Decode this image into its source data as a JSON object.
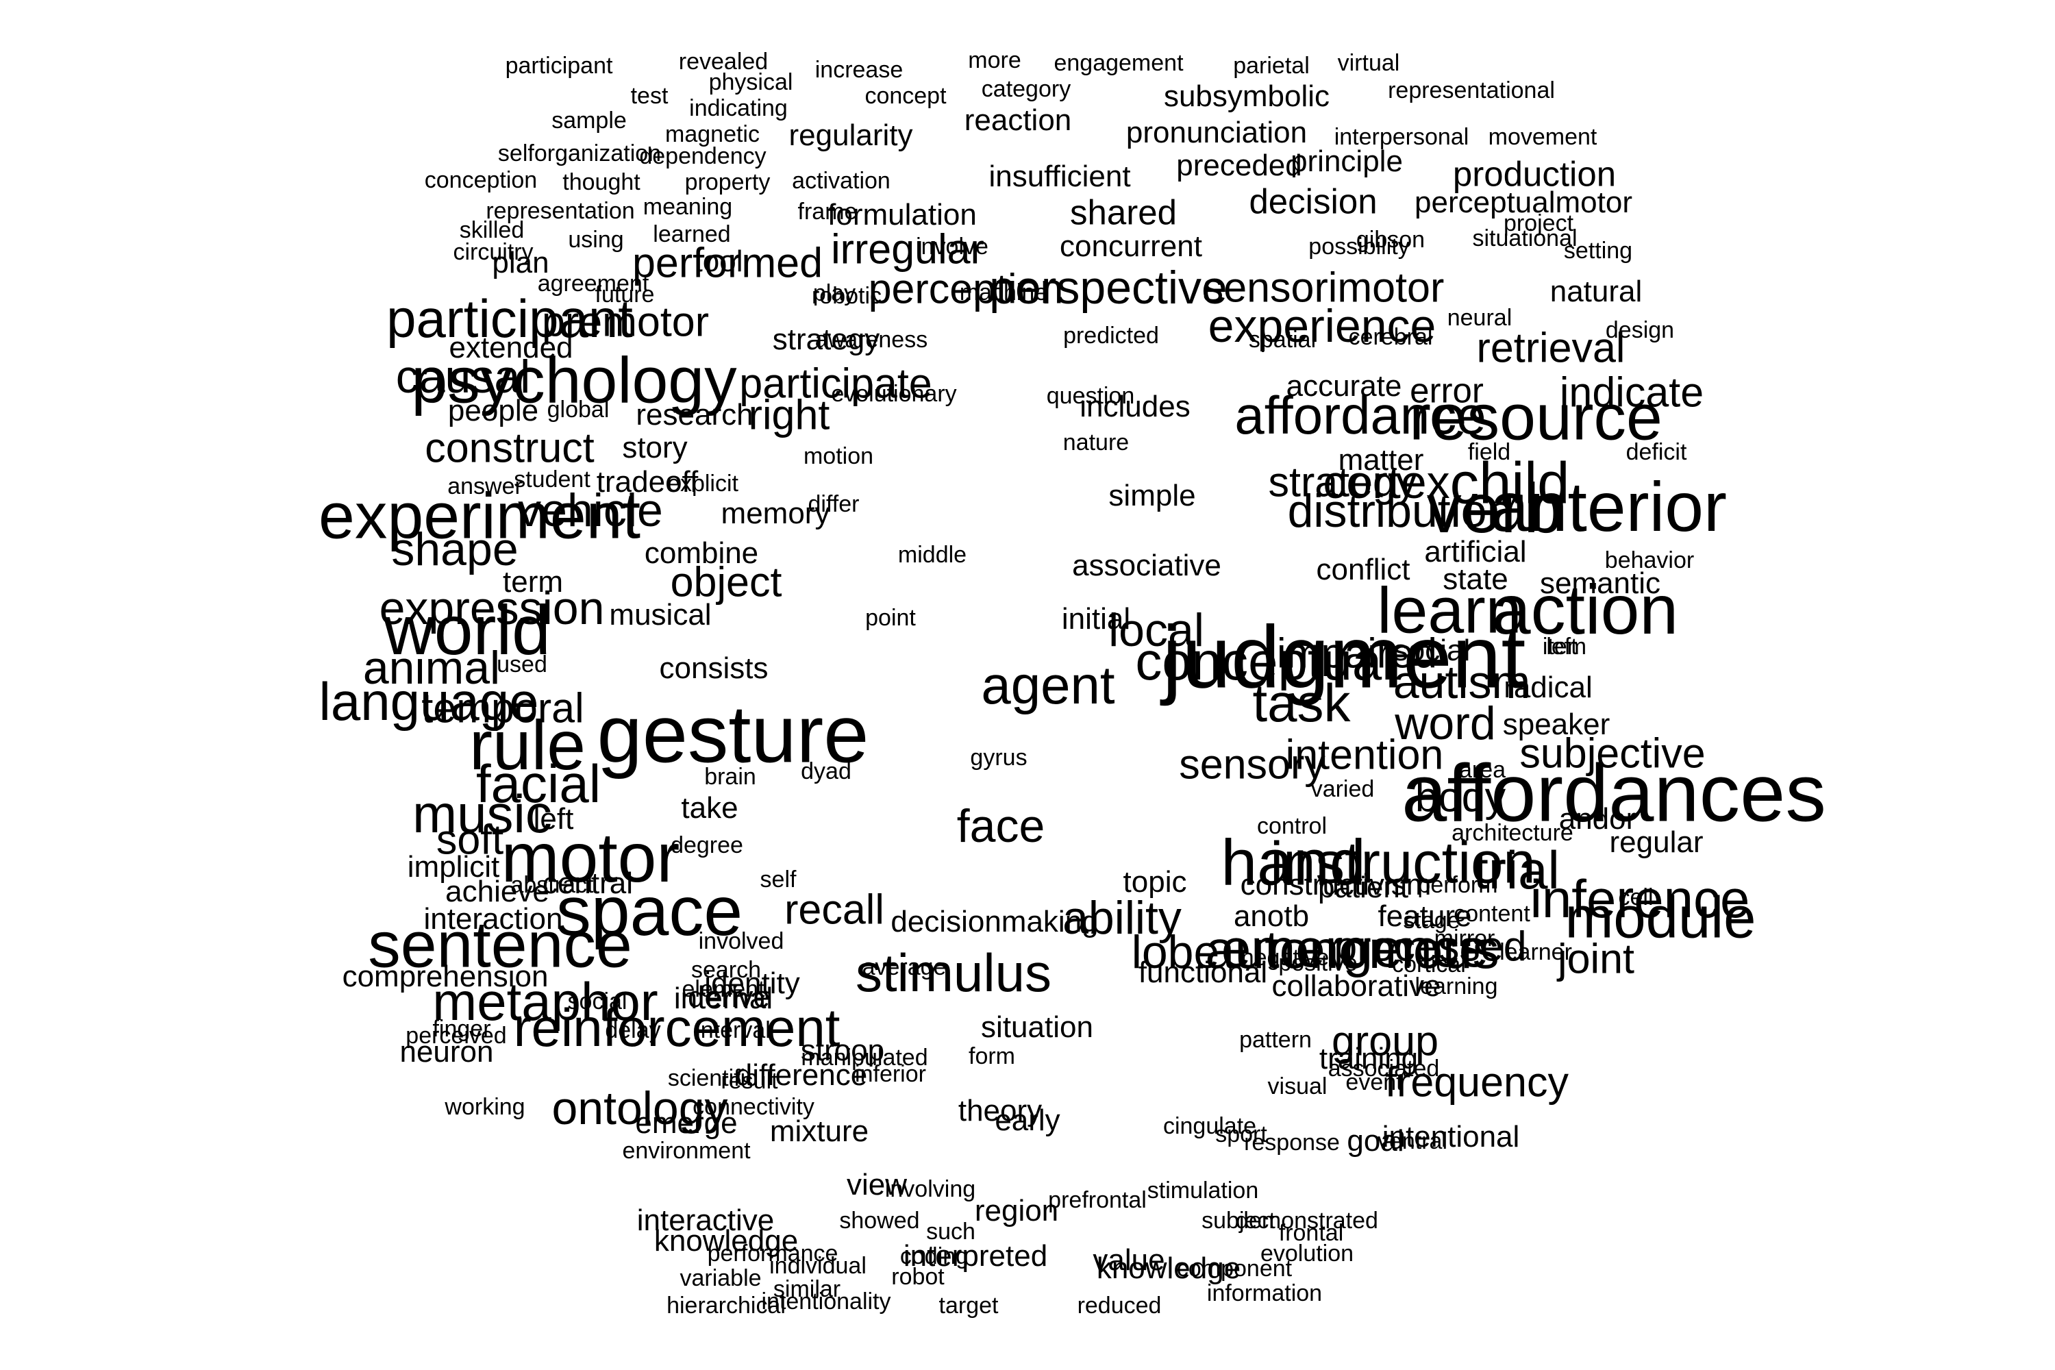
{
  "chart_data": {
    "type": "wordcloud",
    "color": "#000000",
    "background": "#ffffff",
    "words": [
      {
        "text": "participant",
        "weight": 1.0
      },
      {
        "text": "revealed",
        "weight": 1.0
      },
      {
        "text": "physical",
        "weight": 1.0
      },
      {
        "text": "increase",
        "weight": 1.0
      },
      {
        "text": "more",
        "weight": 1.0
      },
      {
        "text": "engagement",
        "weight": 1.0
      },
      {
        "text": "parietal",
        "weight": 1.0
      },
      {
        "text": "virtual",
        "weight": 1.0
      },
      {
        "text": "test",
        "weight": 1.0
      },
      {
        "text": "indicating",
        "weight": 1.0
      },
      {
        "text": "concept",
        "weight": 1.0
      },
      {
        "text": "category",
        "weight": 1.0
      },
      {
        "text": "subsymbolic",
        "weight": 1.3
      },
      {
        "text": "representational",
        "weight": 1.0
      },
      {
        "text": "sample",
        "weight": 1.0
      },
      {
        "text": "magnetic",
        "weight": 1.0
      },
      {
        "text": "regularity",
        "weight": 1.3
      },
      {
        "text": "reaction",
        "weight": 1.3
      },
      {
        "text": "pronunciation",
        "weight": 1.3
      },
      {
        "text": "interpersonal",
        "weight": 1.0
      },
      {
        "text": "movement",
        "weight": 1.0
      },
      {
        "text": "selforganization",
        "weight": 1.0
      },
      {
        "text": "dependency",
        "weight": 1.0
      },
      {
        "text": "preceded",
        "weight": 1.3
      },
      {
        "text": "principle",
        "weight": 1.3
      },
      {
        "text": "conception",
        "weight": 1.0
      },
      {
        "text": "thought",
        "weight": 1.0
      },
      {
        "text": "property",
        "weight": 1.0
      },
      {
        "text": "activation",
        "weight": 1.0
      },
      {
        "text": "insufficient",
        "weight": 1.3
      },
      {
        "text": "production",
        "weight": 1.5
      },
      {
        "text": "representation",
        "weight": 1.0
      },
      {
        "text": "meaning",
        "weight": 1.0
      },
      {
        "text": "frame",
        "weight": 1.0
      },
      {
        "text": "formulation",
        "weight": 1.3
      },
      {
        "text": "shared",
        "weight": 1.5
      },
      {
        "text": "decision",
        "weight": 1.5
      },
      {
        "text": "perceptualmotor",
        "weight": 1.3
      },
      {
        "text": "skilled",
        "weight": 1.0
      },
      {
        "text": "using",
        "weight": 1.0
      },
      {
        "text": "learned",
        "weight": 1.0
      },
      {
        "text": "tool",
        "weight": 1.3
      },
      {
        "text": "involve",
        "weight": 1.0
      },
      {
        "text": "possibility",
        "weight": 1.0
      },
      {
        "text": "project",
        "weight": 1.0
      },
      {
        "text": "circuitry",
        "weight": 1.0
      },
      {
        "text": "plan",
        "weight": 1.3
      },
      {
        "text": "performed",
        "weight": 1.8
      },
      {
        "text": "irregular",
        "weight": 1.8
      },
      {
        "text": "concurrent",
        "weight": 1.3
      },
      {
        "text": "gibson",
        "weight": 1.0
      },
      {
        "text": "situational",
        "weight": 1.0
      },
      {
        "text": "setting",
        "weight": 1.0
      },
      {
        "text": "agreement",
        "weight": 1.0
      },
      {
        "text": "future",
        "weight": 1.0
      },
      {
        "text": "play",
        "weight": 1.0
      },
      {
        "text": "perception",
        "weight": 1.8
      },
      {
        "text": "perspective",
        "weight": 2.0
      },
      {
        "text": "sensorimotor",
        "weight": 1.8
      },
      {
        "text": "neural",
        "weight": 1.0
      },
      {
        "text": "natural",
        "weight": 1.3
      },
      {
        "text": "robotic",
        "weight": 1.0
      },
      {
        "text": "machine",
        "weight": 1.0
      },
      {
        "text": "experience",
        "weight": 2.0
      },
      {
        "text": "participant",
        "weight": 2.3
      },
      {
        "text": "premotor",
        "weight": 1.8
      },
      {
        "text": "strategy",
        "weight": 1.3
      },
      {
        "text": "predicted",
        "weight": 1.0
      },
      {
        "text": "design",
        "weight": 1.0
      },
      {
        "text": "extended",
        "weight": 1.3
      },
      {
        "text": "awareness",
        "weight": 1.0
      },
      {
        "text": "spatial",
        "weight": 1.0
      },
      {
        "text": "cerebral",
        "weight": 1.0
      },
      {
        "text": "retrieval",
        "weight": 1.8
      },
      {
        "text": "causal",
        "weight": 2.0
      },
      {
        "text": "psychology",
        "weight": 2.8
      },
      {
        "text": "participate",
        "weight": 1.8
      },
      {
        "text": "evolutionary",
        "weight": 1.0
      },
      {
        "text": "question",
        "weight": 1.0
      },
      {
        "text": "includes",
        "weight": 1.3
      },
      {
        "text": "accurate",
        "weight": 1.3
      },
      {
        "text": "error",
        "weight": 1.5
      },
      {
        "text": "indicate",
        "weight": 1.8
      },
      {
        "text": "people",
        "weight": 1.3
      },
      {
        "text": "global",
        "weight": 1.0
      },
      {
        "text": "research",
        "weight": 1.3
      },
      {
        "text": "right",
        "weight": 1.8
      },
      {
        "text": "affordance",
        "weight": 2.3
      },
      {
        "text": "resource",
        "weight": 2.8
      },
      {
        "text": "construct",
        "weight": 1.8
      },
      {
        "text": "story",
        "weight": 1.3
      },
      {
        "text": "motion",
        "weight": 1.0
      },
      {
        "text": "nature",
        "weight": 1.0
      },
      {
        "text": "matter",
        "weight": 1.3
      },
      {
        "text": "field",
        "weight": 1.0
      },
      {
        "text": "deficit",
        "weight": 1.0
      },
      {
        "text": "answer",
        "weight": 1.0
      },
      {
        "text": "student",
        "weight": 1.0
      },
      {
        "text": "tradeoff",
        "weight": 1.3
      },
      {
        "text": "explicit",
        "weight": 1.0
      },
      {
        "text": "strategy",
        "weight": 1.8
      },
      {
        "text": "cortex",
        "weight": 2.0
      },
      {
        "text": "child",
        "weight": 2.5
      },
      {
        "text": "experiment",
        "weight": 2.8
      },
      {
        "text": "vehicle",
        "weight": 2.0
      },
      {
        "text": "memory",
        "weight": 1.3
      },
      {
        "text": "differ",
        "weight": 1.0
      },
      {
        "text": "simple",
        "weight": 1.3
      },
      {
        "text": "distribution",
        "weight": 2.0
      },
      {
        "text": "verb",
        "weight": 3.0
      },
      {
        "text": "anterior",
        "weight": 3.0
      },
      {
        "text": "shape",
        "weight": 2.0
      },
      {
        "text": "combine",
        "weight": 1.3
      },
      {
        "text": "middle",
        "weight": 1.0
      },
      {
        "text": "associative",
        "weight": 1.3
      },
      {
        "text": "conflict",
        "weight": 1.3
      },
      {
        "text": "artificial",
        "weight": 1.3
      },
      {
        "text": "behavior",
        "weight": 1.0
      },
      {
        "text": "term",
        "weight": 1.3
      },
      {
        "text": "object",
        "weight": 1.8
      },
      {
        "text": "state",
        "weight": 1.3
      },
      {
        "text": "semantic",
        "weight": 1.3
      },
      {
        "text": "expression",
        "weight": 2.0
      },
      {
        "text": "learn",
        "weight": 2.8
      },
      {
        "text": "action",
        "weight": 3.0
      },
      {
        "text": "world",
        "weight": 3.0
      },
      {
        "text": "musical",
        "weight": 1.3
      },
      {
        "text": "point",
        "weight": 1.0
      },
      {
        "text": "initial",
        "weight": 1.3
      },
      {
        "text": "local",
        "weight": 2.0
      },
      {
        "text": "left",
        "weight": 1.0
      },
      {
        "text": "animal",
        "weight": 2.0
      },
      {
        "text": "used",
        "weight": 1.0
      },
      {
        "text": "conceptual",
        "weight": 2.3
      },
      {
        "text": "judgment",
        "weight": 3.8
      },
      {
        "text": "impaired",
        "weight": 1.8
      },
      {
        "text": "social",
        "weight": 1.3
      },
      {
        "text": "item",
        "weight": 1.0
      },
      {
        "text": "consists",
        "weight": 1.3
      },
      {
        "text": "agent",
        "weight": 2.3
      },
      {
        "text": "autism",
        "weight": 2.0
      },
      {
        "text": "radical",
        "weight": 1.3
      },
      {
        "text": "language",
        "weight": 2.3
      },
      {
        "text": "temporal",
        "weight": 1.8
      },
      {
        "text": "task",
        "weight": 2.3
      },
      {
        "text": "word",
        "weight": 2.0
      },
      {
        "text": "speaker",
        "weight": 1.3
      },
      {
        "text": "gesture",
        "weight": 3.5
      },
      {
        "text": "rule",
        "weight": 3.0
      },
      {
        "text": "intention",
        "weight": 1.8
      },
      {
        "text": "area",
        "weight": 1.0
      },
      {
        "text": "subjective",
        "weight": 1.8
      },
      {
        "text": "gyrus",
        "weight": 1.0
      },
      {
        "text": "sensory",
        "weight": 1.8
      },
      {
        "text": "brain",
        "weight": 1.0
      },
      {
        "text": "dyad",
        "weight": 1.0
      },
      {
        "text": "facial",
        "weight": 2.3
      },
      {
        "text": "varied",
        "weight": 1.0
      },
      {
        "text": "body",
        "weight": 1.8
      },
      {
        "text": "affordances",
        "weight": 3.5
      },
      {
        "text": "music",
        "weight": 2.3
      },
      {
        "text": "take",
        "weight": 1.3
      },
      {
        "text": "andor",
        "weight": 1.3
      },
      {
        "text": "left",
        "weight": 1.3
      },
      {
        "text": "face",
        "weight": 2.0
      },
      {
        "text": "control",
        "weight": 1.0
      },
      {
        "text": "soft",
        "weight": 1.8
      },
      {
        "text": "degree",
        "weight": 1.0
      },
      {
        "text": "architecture",
        "weight": 1.0
      },
      {
        "text": "hand",
        "weight": 2.8
      },
      {
        "text": "regular",
        "weight": 1.3
      },
      {
        "text": "motor",
        "weight": 3.0
      },
      {
        "text": "implicit",
        "weight": 1.3
      },
      {
        "text": "instruction",
        "weight": 2.5
      },
      {
        "text": "topic",
        "weight": 1.3
      },
      {
        "text": "trial",
        "weight": 2.3
      },
      {
        "text": "central",
        "weight": 1.3
      },
      {
        "text": "self",
        "weight": 1.0
      },
      {
        "text": "constructivism",
        "weight": 1.3
      },
      {
        "text": "achieve",
        "weight": 1.3
      },
      {
        "text": "abstract",
        "weight": 1.0
      },
      {
        "text": "patient",
        "weight": 1.3
      },
      {
        "text": "perform",
        "weight": 1.0
      },
      {
        "text": "cell",
        "weight": 1.0
      },
      {
        "text": "space",
        "weight": 3.0
      },
      {
        "text": "recall",
        "weight": 1.8
      },
      {
        "text": "anotb",
        "weight": 1.3
      },
      {
        "text": "stage",
        "weight": 1.0
      },
      {
        "text": "inference",
        "weight": 2.3
      },
      {
        "text": "interaction",
        "weight": 1.3
      },
      {
        "text": "ability",
        "weight": 2.0
      },
      {
        "text": "feature",
        "weight": 1.3
      },
      {
        "text": "content",
        "weight": 1.0
      },
      {
        "text": "module",
        "weight": 2.5
      },
      {
        "text": "involved",
        "weight": 1.0
      },
      {
        "text": "decisionmaking",
        "weight": 1.3
      },
      {
        "text": "mirror",
        "weight": 1.0
      },
      {
        "text": "sentence",
        "weight": 2.8
      },
      {
        "text": "emergence",
        "weight": 2.3
      },
      {
        "text": "processed",
        "weight": 1.8
      },
      {
        "text": "learner",
        "weight": 1.0
      },
      {
        "text": "lobe",
        "weight": 2.0
      },
      {
        "text": "search",
        "weight": 1.0
      },
      {
        "text": "functional",
        "weight": 1.3
      },
      {
        "text": "cortical",
        "weight": 1.0
      },
      {
        "text": "autonomous",
        "weight": 2.3
      },
      {
        "text": "negative",
        "weight": 1.0
      },
      {
        "text": "comprehension",
        "weight": 1.3
      },
      {
        "text": "element",
        "weight": 1.0
      },
      {
        "text": "joint",
        "weight": 1.8
      },
      {
        "text": "internal",
        "weight": 1.3
      },
      {
        "text": "stimulus",
        "weight": 2.3
      },
      {
        "text": "learning",
        "weight": 1.0
      },
      {
        "text": "collaborative",
        "weight": 1.3
      },
      {
        "text": "metaphor",
        "weight": 2.3
      },
      {
        "text": "social",
        "weight": 1.0
      },
      {
        "text": "finger",
        "weight": 1.0
      },
      {
        "text": "positive",
        "weight": 1.0
      },
      {
        "text": "average",
        "weight": 1.0
      },
      {
        "text": "identity",
        "weight": 1.3
      },
      {
        "text": "perceived",
        "weight": 1.0
      },
      {
        "text": "derive",
        "weight": 1.3
      },
      {
        "text": "situation",
        "weight": 1.3
      },
      {
        "text": "group",
        "weight": 1.8
      },
      {
        "text": "delay",
        "weight": 1.0
      },
      {
        "text": "pattern",
        "weight": 1.0
      },
      {
        "text": "training",
        "weight": 1.3
      },
      {
        "text": "associated",
        "weight": 1.0
      },
      {
        "text": "reinforcement",
        "weight": 2.3
      },
      {
        "text": "neuron",
        "weight": 1.3
      },
      {
        "text": "interval",
        "weight": 1.0
      },
      {
        "text": "manipulated",
        "weight": 1.0
      },
      {
        "text": "form",
        "weight": 1.0
      },
      {
        "text": "visual",
        "weight": 1.0
      },
      {
        "text": "event",
        "weight": 1.0
      },
      {
        "text": "difference",
        "weight": 1.3
      },
      {
        "text": "frequency",
        "weight": 1.8
      },
      {
        "text": "stroop",
        "weight": 1.3
      },
      {
        "text": "inferior",
        "weight": 1.0
      },
      {
        "text": "scientific",
        "weight": 1.0
      },
      {
        "text": "result",
        "weight": 1.0
      },
      {
        "text": "ontology",
        "weight": 2.0
      },
      {
        "text": "working",
        "weight": 1.0
      },
      {
        "text": "connectivity",
        "weight": 1.0
      },
      {
        "text": "theory",
        "weight": 1.3
      },
      {
        "text": "early",
        "weight": 1.3
      },
      {
        "text": "response",
        "weight": 1.0
      },
      {
        "text": "cingulate",
        "weight": 1.0
      },
      {
        "text": "sport",
        "weight": 1.0
      },
      {
        "text": "emerge",
        "weight": 1.3
      },
      {
        "text": "goal",
        "weight": 1.3
      },
      {
        "text": "mixture",
        "weight": 1.3
      },
      {
        "text": "ventral",
        "weight": 1.0
      },
      {
        "text": "environment",
        "weight": 1.0
      },
      {
        "text": "intentional",
        "weight": 1.3
      },
      {
        "text": "view",
        "weight": 1.3
      },
      {
        "text": "involving",
        "weight": 1.0
      },
      {
        "text": "prefrontal",
        "weight": 1.0
      },
      {
        "text": "stimulation",
        "weight": 1.0
      },
      {
        "text": "region",
        "weight": 1.3
      },
      {
        "text": "subject",
        "weight": 1.0
      },
      {
        "text": "demonstrated",
        "weight": 1.0
      },
      {
        "text": "interactive",
        "weight": 1.3
      },
      {
        "text": "knowledge",
        "weight": 1.3
      },
      {
        "text": "showed",
        "weight": 1.0
      },
      {
        "text": "such",
        "weight": 1.0
      },
      {
        "text": "frontal",
        "weight": 1.0
      },
      {
        "text": "performance",
        "weight": 1.0
      },
      {
        "text": "individual",
        "weight": 1.0
      },
      {
        "text": "coding",
        "weight": 1.0
      },
      {
        "text": "interpreted",
        "weight": 1.3
      },
      {
        "text": "value",
        "weight": 1.3
      },
      {
        "text": "evolution",
        "weight": 1.0
      },
      {
        "text": "variable",
        "weight": 1.0
      },
      {
        "text": "similar",
        "weight": 1.0
      },
      {
        "text": "robot",
        "weight": 1.0
      },
      {
        "text": "knowledge",
        "weight": 1.3
      },
      {
        "text": "component",
        "weight": 1.0
      },
      {
        "text": "hierarchical",
        "weight": 1.0
      },
      {
        "text": "intentionality",
        "weight": 1.0
      },
      {
        "text": "target",
        "weight": 1.0
      },
      {
        "text": "reduced",
        "weight": 1.0
      },
      {
        "text": "information",
        "weight": 1.0
      }
    ]
  }
}
